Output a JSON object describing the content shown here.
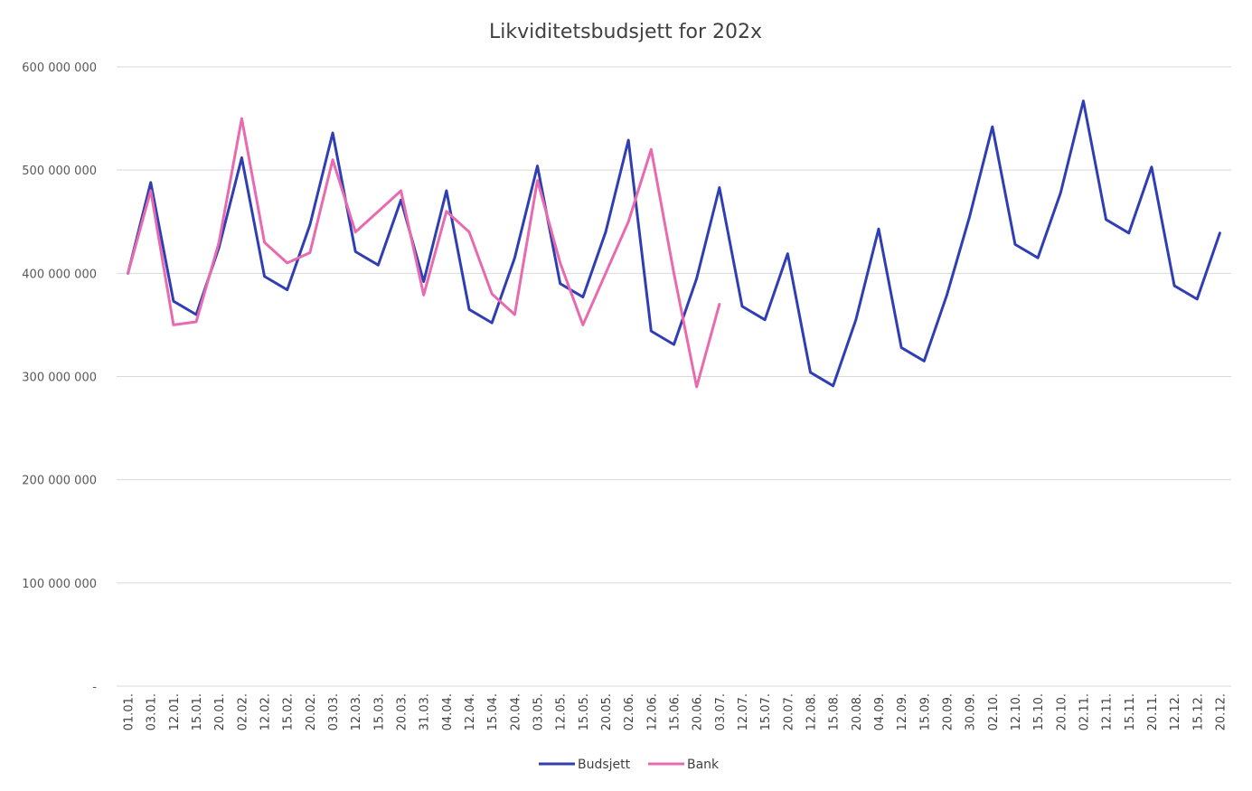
{
  "chart_data": {
    "type": "line",
    "title": "Likviditetsbudsjett for 202x",
    "xlabel": "",
    "ylabel": "",
    "ylim": [
      0,
      600000000
    ],
    "yticks": [
      {
        "value": 0,
        "label": "-"
      },
      {
        "value": 100000000,
        "label": "100 000 000"
      },
      {
        "value": 200000000,
        "label": "200 000 000"
      },
      {
        "value": 300000000,
        "label": "300 000 000"
      },
      {
        "value": 400000000,
        "label": "400 000 000"
      },
      {
        "value": 500000000,
        "label": "500 000 000"
      },
      {
        "value": 600000000,
        "label": "600 000 000"
      }
    ],
    "grid": true,
    "legend_position": "bottom",
    "categories": [
      "01.01.",
      "03.01.",
      "12.01.",
      "15.01.",
      "20.01.",
      "02.02.",
      "12.02.",
      "15.02.",
      "20.02.",
      "03.03.",
      "12.03.",
      "15.03.",
      "20.03.",
      "31.03.",
      "04.04.",
      "12.04.",
      "15.04.",
      "20.04.",
      "03.05.",
      "12.05.",
      "15.05.",
      "20.05.",
      "02.06.",
      "12.06.",
      "15.06.",
      "20.06.",
      "03.07.",
      "12.07.",
      "15.07.",
      "20.07.",
      "12.08.",
      "15.08.",
      "20.08.",
      "04.09.",
      "12.09.",
      "15.09.",
      "20.09.",
      "30.09.",
      "02.10.",
      "12.10.",
      "15.10.",
      "20.10.",
      "02.11.",
      "12.11.",
      "15.11.",
      "20.11.",
      "12.12.",
      "15.12.",
      "20.12."
    ],
    "series": [
      {
        "name": "Budsjett",
        "color": "#2f3fb3",
        "values": [
          400000000,
          488000000,
          373000000,
          360000000,
          425000000,
          512000000,
          397000000,
          384000000,
          447000000,
          536000000,
          421000000,
          408000000,
          471000000,
          392000000,
          480000000,
          365000000,
          352000000,
          415000000,
          504000000,
          390000000,
          377000000,
          440000000,
          529000000,
          344000000,
          331000000,
          395000000,
          483000000,
          368000000,
          355000000,
          419000000,
          304000000,
          291000000,
          355000000,
          443000000,
          328000000,
          315000000,
          379000000,
          455000000,
          542000000,
          428000000,
          415000000,
          478000000,
          567000000,
          452000000,
          439000000,
          503000000,
          388000000,
          375000000,
          439000000
        ]
      },
      {
        "name": "Bank",
        "color": "#e86aaf",
        "values": [
          400000000,
          480000000,
          350000000,
          353000000,
          430000000,
          550000000,
          430000000,
          410000000,
          420000000,
          510000000,
          440000000,
          460000000,
          480000000,
          379000000,
          460000000,
          440000000,
          380000000,
          360000000,
          490000000,
          410000000,
          350000000,
          400000000,
          450000000,
          520000000,
          400000000,
          290000000,
          370000000,
          null,
          null,
          null,
          null,
          null,
          null,
          null,
          null,
          null,
          null,
          null,
          null,
          null,
          null,
          null,
          null,
          null,
          null,
          null,
          null,
          null,
          null
        ]
      }
    ]
  }
}
